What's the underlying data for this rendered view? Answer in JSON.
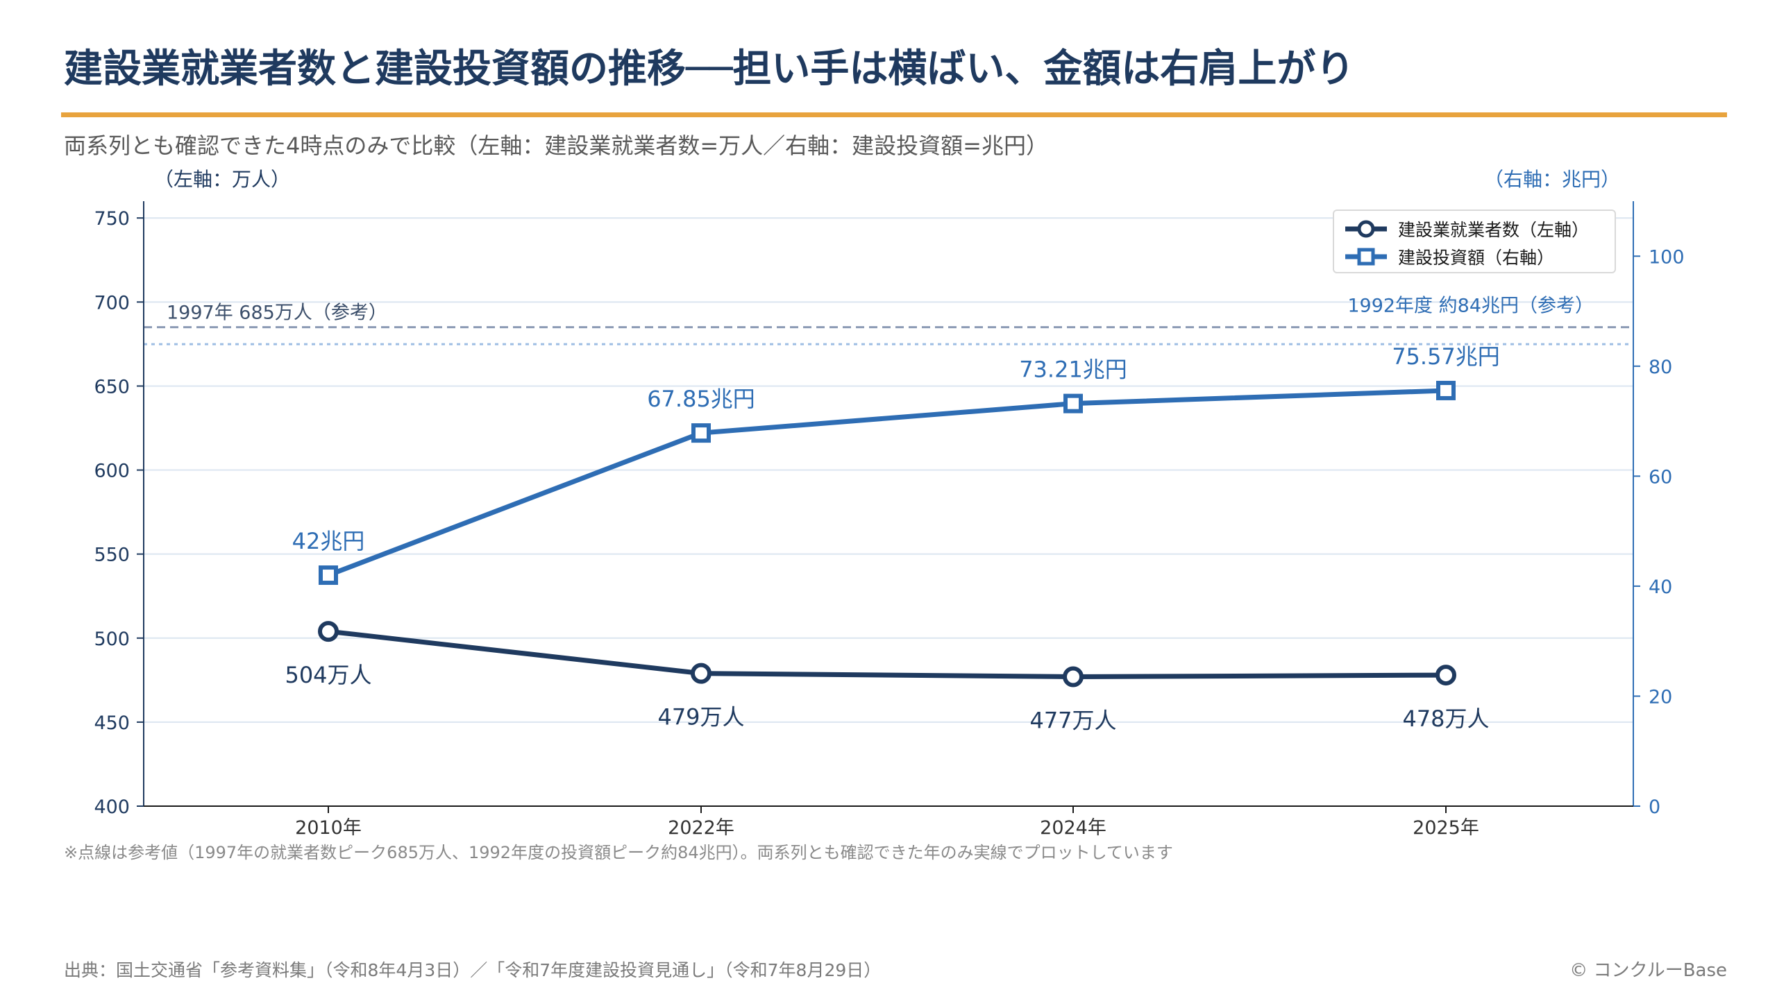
{
  "page": {
    "title": "建設業就業者数と建設投資額の推移──担い手は横ばい、金額は右肩上がり",
    "subtitle": "両系列とも確認できた4時点のみで比較（左軸：建設業就業者数=万人／右軸：建設投資額=兆円）",
    "note": "※点線は参考値（1997年の就業者数ピーク685万人、1992年度の投資額ピーク約84兆円）。両系列とも確認できた年のみ実線でプロットしています",
    "source": "出典：国土交通省「参考資料集」（令和8年4月3日）／「令和7年度建設投資見通し」（令和7年8月29日）",
    "copyright": "© コンクルーBase"
  },
  "colors": {
    "navy": "#1f3a5f",
    "blue": "#2e6db4",
    "accent": "#e8a33d",
    "grid": "#dbe5f0",
    "ref_navy": "#8c9bb5",
    "ref_blue": "#9dbde3"
  },
  "chart_data": {
    "type": "line",
    "categories": [
      "2010年",
      "2022年",
      "2024年",
      "2025年"
    ],
    "y_left": {
      "label": "（左軸：万人）",
      "ylim": [
        400,
        760
      ],
      "ticks": [
        "400",
        "450",
        "500",
        "550",
        "600",
        "650",
        "700",
        "750"
      ]
    },
    "y_right": {
      "label": "（右軸：兆円）",
      "ylim": [
        0,
        110
      ],
      "ticks": [
        "0",
        "20",
        "40",
        "60",
        "80",
        "100"
      ]
    },
    "grid": true,
    "legend_position": "top-right",
    "series": [
      {
        "name": "建設業就業者数（左軸）",
        "axis": "left",
        "marker": "circle",
        "values": [
          504,
          479,
          477,
          478
        ],
        "labels": [
          "504万人",
          "479万人",
          "477万人",
          "478万人"
        ]
      },
      {
        "name": "建設投資額（右軸）",
        "axis": "right",
        "marker": "square",
        "values": [
          42,
          67.85,
          73.21,
          75.57
        ],
        "labels": [
          "42兆円",
          "67.85兆円",
          "73.21兆円",
          "75.57兆円"
        ]
      }
    ],
    "reference_lines": [
      {
        "axis": "left",
        "value": 685,
        "label": "1997年 685万人（参考）"
      },
      {
        "axis": "right",
        "value": 84,
        "label": "1992年度 約84兆円（参考）"
      }
    ]
  }
}
